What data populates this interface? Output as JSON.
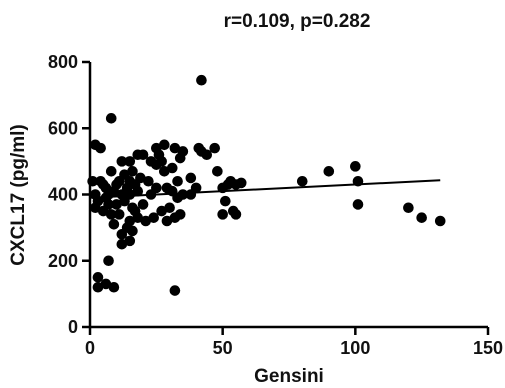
{
  "chart_data": {
    "type": "scatter",
    "title": "r=0.109, p=0.282",
    "xlabel": "Gensini",
    "ylabel": "CXCL17 (pg/ml)",
    "xlim": [
      0,
      150
    ],
    "ylim": [
      0,
      800
    ],
    "xticks": [
      0,
      50,
      100,
      150
    ],
    "yticks": [
      0,
      200,
      400,
      600,
      800
    ],
    "grid": false,
    "legend": "none",
    "trendline": {
      "x1": 0,
      "y1": 390,
      "x2": 132,
      "y2": 443
    },
    "points": [
      [
        1,
        440
      ],
      [
        2,
        550
      ],
      [
        2,
        400
      ],
      [
        2,
        360
      ],
      [
        3,
        380
      ],
      [
        4,
        540
      ],
      [
        4,
        440
      ],
      [
        3,
        150
      ],
      [
        3,
        120
      ],
      [
        5,
        350
      ],
      [
        5,
        430
      ],
      [
        6,
        420
      ],
      [
        6,
        390
      ],
      [
        7,
        400
      ],
      [
        7,
        370
      ],
      [
        7,
        200
      ],
      [
        6,
        130
      ],
      [
        8,
        630
      ],
      [
        8,
        470
      ],
      [
        8,
        340
      ],
      [
        9,
        410
      ],
      [
        9,
        310
      ],
      [
        9,
        120
      ],
      [
        10,
        430
      ],
      [
        10,
        370
      ],
      [
        11,
        440
      ],
      [
        11,
        340
      ],
      [
        12,
        500
      ],
      [
        12,
        400
      ],
      [
        12,
        280
      ],
      [
        12,
        250
      ],
      [
        13,
        460
      ],
      [
        13,
        380
      ],
      [
        14,
        420
      ],
      [
        14,
        300
      ],
      [
        15,
        500
      ],
      [
        15,
        440
      ],
      [
        15,
        400
      ],
      [
        15,
        320
      ],
      [
        15,
        260
      ],
      [
        16,
        470
      ],
      [
        16,
        360
      ],
      [
        16,
        290
      ],
      [
        17,
        430
      ],
      [
        17,
        350
      ],
      [
        18,
        520
      ],
      [
        18,
        410
      ],
      [
        18,
        330
      ],
      [
        19,
        450
      ],
      [
        20,
        520
      ],
      [
        20,
        370
      ],
      [
        21,
        320
      ],
      [
        22,
        440
      ],
      [
        23,
        500
      ],
      [
        23,
        400
      ],
      [
        24,
        330
      ],
      [
        25,
        540
      ],
      [
        25,
        490
      ],
      [
        25,
        420
      ],
      [
        26,
        520
      ],
      [
        27,
        500
      ],
      [
        27,
        350
      ],
      [
        28,
        550
      ],
      [
        28,
        470
      ],
      [
        29,
        420
      ],
      [
        29,
        320
      ],
      [
        30,
        360
      ],
      [
        31,
        480
      ],
      [
        31,
        410
      ],
      [
        32,
        540
      ],
      [
        32,
        330
      ],
      [
        32,
        110
      ],
      [
        33,
        440
      ],
      [
        33,
        390
      ],
      [
        34,
        510
      ],
      [
        34,
        340
      ],
      [
        35,
        530
      ],
      [
        35,
        400
      ],
      [
        38,
        450
      ],
      [
        38,
        400
      ],
      [
        40,
        420
      ],
      [
        41,
        540
      ],
      [
        42,
        745
      ],
      [
        42,
        530
      ],
      [
        44,
        520
      ],
      [
        47,
        540
      ],
      [
        48,
        470
      ],
      [
        50,
        420
      ],
      [
        50,
        340
      ],
      [
        51,
        380
      ],
      [
        52,
        430
      ],
      [
        53,
        440
      ],
      [
        54,
        350
      ],
      [
        55,
        430
      ],
      [
        55,
        340
      ],
      [
        57,
        435
      ],
      [
        80,
        440
      ],
      [
        90,
        470
      ],
      [
        100,
        485
      ],
      [
        101,
        440
      ],
      [
        101,
        370
      ],
      [
        120,
        360
      ],
      [
        125,
        330
      ],
      [
        132,
        320
      ]
    ]
  }
}
